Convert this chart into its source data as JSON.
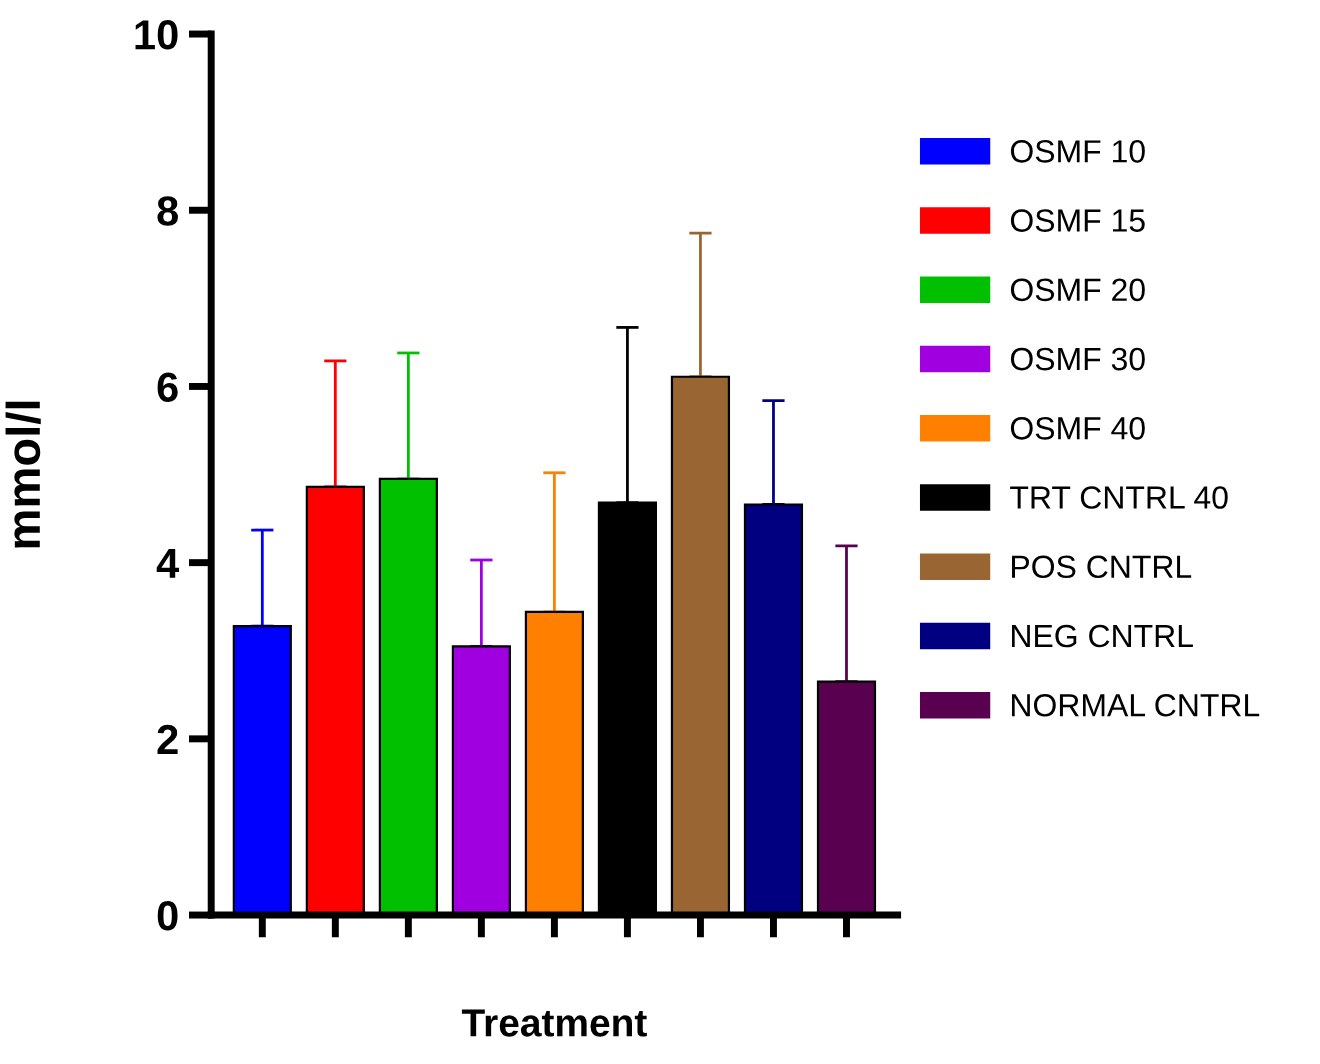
{
  "chart_data": {
    "type": "bar",
    "xlabel": "Treatment",
    "ylabel": "mmol/l",
    "categories": [
      null,
      null,
      null,
      null,
      null,
      null,
      null,
      null,
      null
    ],
    "ylim": [
      0,
      10
    ],
    "yticks": [
      0,
      2,
      4,
      6,
      8,
      10
    ],
    "grid": false,
    "legend": "right",
    "series": [
      {
        "name": "OSMF 10",
        "color": "#0000ff",
        "values": [
          3.28,
          null,
          null,
          null,
          null,
          null,
          null,
          null,
          null
        ],
        "errors": [
          [
            3.28,
            4.37
          ],
          null,
          null,
          null,
          null,
          null,
          null,
          null,
          null
        ]
      },
      {
        "name": "OSMF 15",
        "color": "#ff0000",
        "values": [
          null,
          4.86,
          null,
          null,
          null,
          null,
          null,
          null,
          null
        ],
        "errors": [
          null,
          [
            4.86,
            6.29
          ],
          null,
          null,
          null,
          null,
          null,
          null,
          null
        ]
      },
      {
        "name": "OSMF 20",
        "color": "#00c000",
        "values": [
          null,
          null,
          4.95,
          null,
          null,
          null,
          null,
          null,
          null
        ],
        "errors": [
          null,
          null,
          [
            4.95,
            6.38
          ],
          null,
          null,
          null,
          null,
          null,
          null
        ]
      },
      {
        "name": "OSMF 30",
        "color": "#a000e0",
        "values": [
          null,
          null,
          null,
          3.05,
          null,
          null,
          null,
          null,
          null
        ],
        "errors": [
          null,
          null,
          null,
          [
            3.05,
            4.03
          ],
          null,
          null,
          null,
          null,
          null
        ]
      },
      {
        "name": "OSMF 40",
        "color": "#ff8000",
        "values": [
          null,
          null,
          null,
          null,
          3.44,
          null,
          null,
          null,
          null
        ],
        "errors": [
          null,
          null,
          null,
          null,
          [
            3.44,
            5.02
          ],
          null,
          null,
          null,
          null
        ]
      },
      {
        "name": "TRT CNTRL 40",
        "color": "#000000",
        "values": [
          null,
          null,
          null,
          null,
          null,
          4.68,
          null,
          null,
          null
        ],
        "errors": [
          null,
          null,
          null,
          null,
          null,
          [
            4.68,
            6.67
          ],
          null,
          null,
          null
        ]
      },
      {
        "name": "POS CNTRL",
        "color": "#996633",
        "values": [
          null,
          null,
          null,
          null,
          null,
          null,
          6.11,
          null,
          null
        ],
        "errors": [
          null,
          null,
          null,
          null,
          null,
          null,
          [
            6.11,
            7.74
          ],
          null,
          null
        ]
      },
      {
        "name": "NEG CNTRL",
        "color": "#000080",
        "values": [
          null,
          null,
          null,
          null,
          null,
          null,
          null,
          4.66,
          null
        ],
        "errors": [
          null,
          null,
          null,
          null,
          null,
          null,
          null,
          [
            4.66,
            5.84
          ],
          null
        ]
      },
      {
        "name": "NORMAL CNTRL",
        "color": "#5a0050",
        "values": [
          null,
          null,
          null,
          null,
          null,
          null,
          null,
          null,
          2.65
        ],
        "errors": [
          null,
          null,
          null,
          null,
          null,
          null,
          null,
          null,
          [
            2.65,
            4.19
          ]
        ]
      }
    ]
  }
}
